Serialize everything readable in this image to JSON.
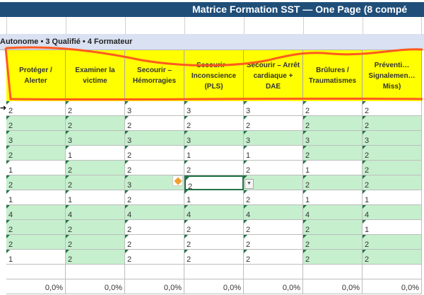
{
  "title": "Matrice Formation SST — One Page (8 compé",
  "legend": "Autonome • 3 Qualifié • 4 Formateur",
  "columns": [
    "Protéger / Alerter",
    "Examiner la victime",
    "Secourir – Hémorragies",
    "Secourir – Inconscience (PLS)",
    "Secourir – Arrêt cardiaque + DAE",
    "Brûlures / Traumatismes",
    "Préventi… Signalemen… Miss)"
  ],
  "rows": [
    {
      "values": [
        "2",
        "2",
        "3",
        "3",
        "3",
        "2",
        "2"
      ],
      "green": [
        0,
        0,
        0,
        0,
        0,
        0,
        0
      ]
    },
    {
      "values": [
        "2",
        "2",
        "2",
        "2",
        "2",
        "2",
        "2"
      ],
      "green": [
        1,
        1,
        0,
        0,
        0,
        1,
        1
      ]
    },
    {
      "values": [
        "3",
        "3",
        "3",
        "3",
        "3",
        "3",
        "3"
      ],
      "green": [
        1,
        1,
        1,
        1,
        1,
        1,
        1
      ]
    },
    {
      "values": [
        "2",
        "1",
        "2",
        "1",
        "1",
        "2",
        "2"
      ],
      "green": [
        1,
        0,
        0,
        0,
        0,
        1,
        1
      ]
    },
    {
      "values": [
        "1",
        "2",
        "2",
        "2",
        "2",
        "1",
        "2"
      ],
      "green": [
        0,
        1,
        0,
        0,
        0,
        0,
        1
      ]
    },
    {
      "values": [
        "2",
        "2",
        "3",
        "2",
        "",
        "2",
        "2"
      ],
      "green": [
        1,
        1,
        1,
        0,
        1,
        1,
        1
      ]
    },
    {
      "values": [
        "1",
        "1",
        "2",
        "1",
        "2",
        "1",
        "1"
      ],
      "green": [
        0,
        0,
        0,
        0,
        0,
        0,
        0
      ]
    },
    {
      "values": [
        "4",
        "4",
        "4",
        "4",
        "4",
        "4",
        "4"
      ],
      "green": [
        1,
        1,
        1,
        1,
        1,
        1,
        1
      ]
    },
    {
      "values": [
        "2",
        "2",
        "2",
        "2",
        "2",
        "2",
        "1"
      ],
      "green": [
        1,
        1,
        0,
        0,
        0,
        1,
        0
      ]
    },
    {
      "values": [
        "2",
        "2",
        "2",
        "2",
        "2",
        "2",
        "2"
      ],
      "green": [
        1,
        1,
        0,
        0,
        0,
        1,
        1
      ]
    },
    {
      "values": [
        "1",
        "2",
        "2",
        "2",
        "2",
        "2",
        "2"
      ],
      "green": [
        0,
        1,
        0,
        0,
        0,
        1,
        1
      ]
    }
  ],
  "selected_cell": {
    "row": 5,
    "col": 3
  },
  "totals": [
    "0,0%",
    "0,0%",
    "0,0%",
    "0,0%",
    "0,0%",
    "0,0%",
    "0,0%"
  ],
  "colors": {
    "title_bg": "#1f4e79",
    "header_bg": "#ffff00",
    "good_fill": "#c6efce",
    "annotation": "#ff5a1f"
  }
}
